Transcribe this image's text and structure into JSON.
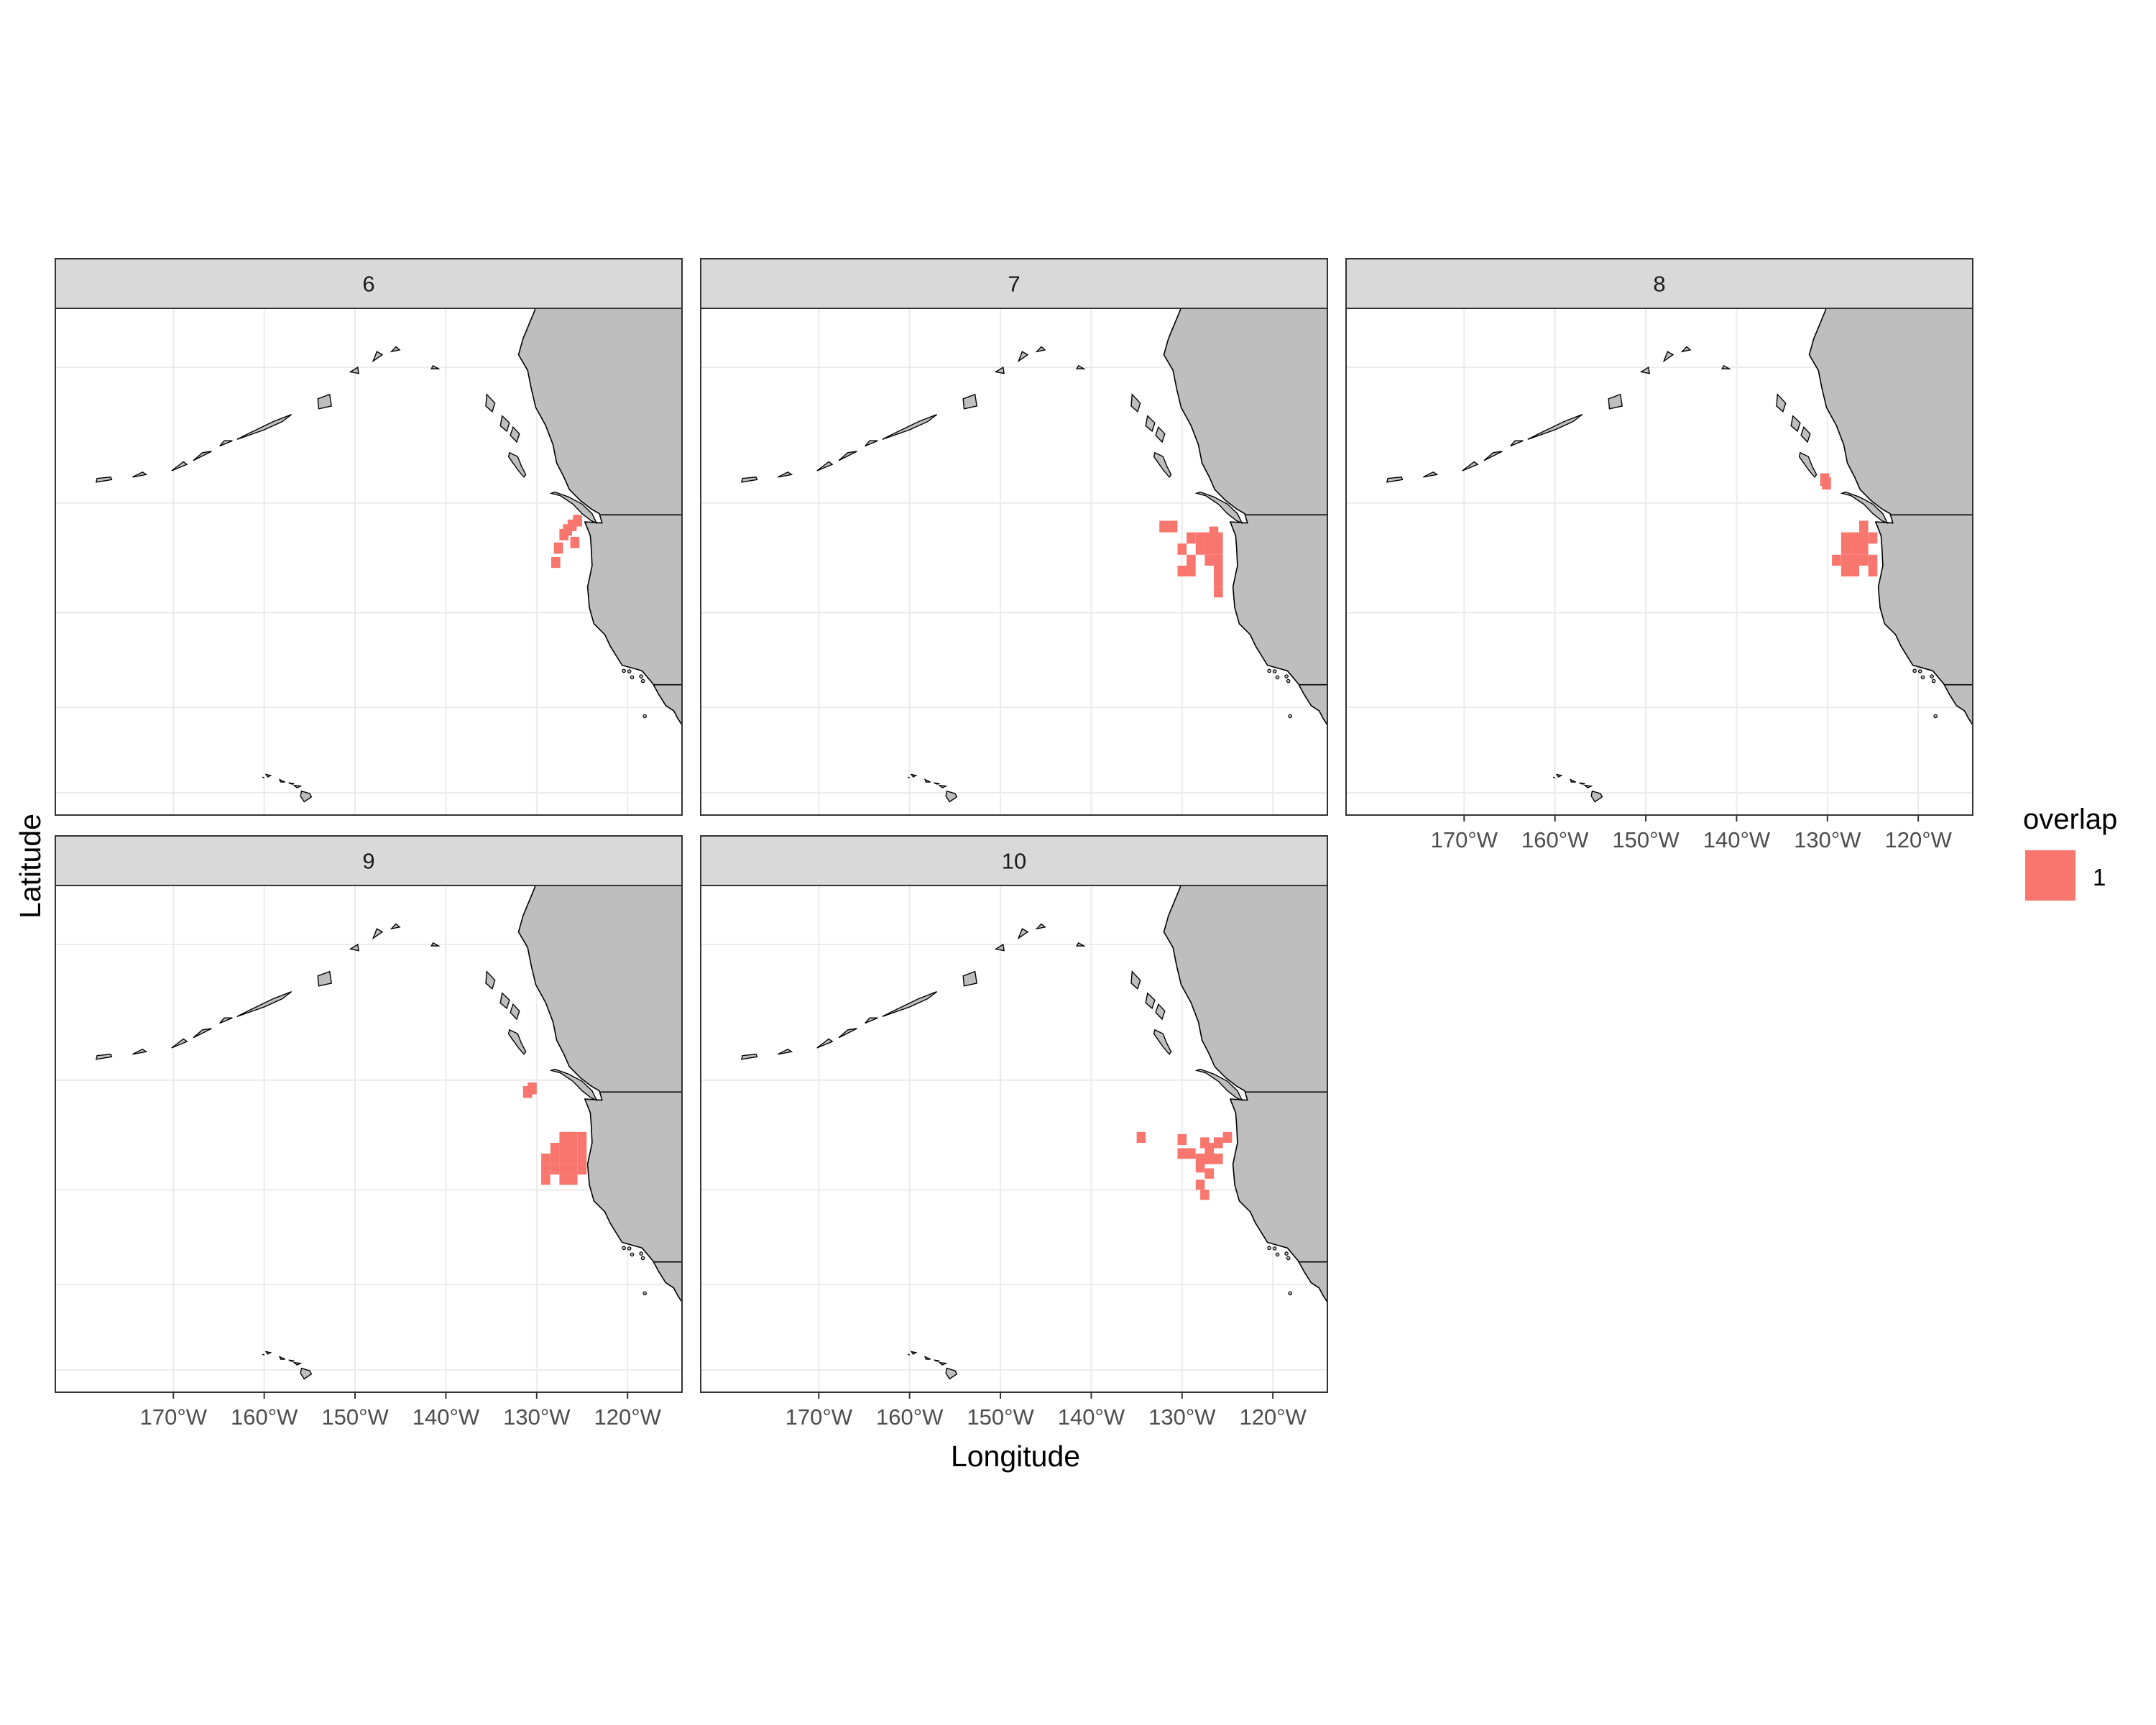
{
  "figure": {
    "x_axis_title": "Longitude",
    "y_axis_title": "Latitude",
    "legend_title": "overlap",
    "legend_key_label": "1"
  },
  "colors": {
    "overlap": "#f8766d",
    "land": "#bebebe",
    "coast": "#000000",
    "strip": "#d9d9d9",
    "grid": "#ebebeb",
    "tick_text": "#4d4d4d"
  },
  "chart_data": {
    "type": "map-facets",
    "facet_variable_values": [
      "6",
      "7",
      "8",
      "9",
      "10"
    ],
    "x_ticks": [
      {
        "lon": -170,
        "label": "170°W"
      },
      {
        "lon": -160,
        "label": "160°W"
      },
      {
        "lon": -150,
        "label": "150°W"
      },
      {
        "lon": -140,
        "label": "140°W"
      },
      {
        "lon": -130,
        "label": "130°W"
      },
      {
        "lon": -120,
        "label": "120°W"
      }
    ],
    "y_grid_lat": [
      20,
      30,
      40,
      50,
      60
    ],
    "xlim": [
      -183,
      -114
    ],
    "ylim": [
      17.9,
      65
    ],
    "grid": true,
    "legend_position": "right",
    "cells": {
      "6": [
        [
          -125.5,
          48.5
        ],
        [
          -126.1,
          48.1
        ],
        [
          -126.6,
          47.7
        ],
        [
          -127.0,
          47.3
        ],
        [
          -125.8,
          46.6
        ],
        [
          -127.6,
          46.1
        ],
        [
          -127.9,
          44.8
        ]
      ],
      "7": [
        [
          -132,
          48
        ],
        [
          -131,
          48
        ],
        [
          -126.5,
          47.5
        ],
        [
          -129,
          47
        ],
        [
          -128,
          47
        ],
        [
          -127,
          47
        ],
        [
          -126,
          47
        ],
        [
          -130,
          46
        ],
        [
          -128,
          46
        ],
        [
          -127,
          46
        ],
        [
          -126,
          46
        ],
        [
          -129,
          45
        ],
        [
          -127,
          45
        ],
        [
          -126,
          45
        ],
        [
          -130,
          44
        ],
        [
          -129,
          44
        ],
        [
          -126,
          44
        ],
        [
          -126,
          43
        ],
        [
          -126,
          42
        ]
      ],
      "8": [
        [
          -130.3,
          51.9
        ],
        [
          -130.1,
          51.6
        ],
        [
          -126,
          48
        ],
        [
          -128,
          47
        ],
        [
          -127,
          47
        ],
        [
          -126,
          47
        ],
        [
          -125,
          47
        ],
        [
          -128,
          46
        ],
        [
          -127,
          46
        ],
        [
          -126,
          46
        ],
        [
          -129,
          45
        ],
        [
          -128,
          45
        ],
        [
          -127,
          45
        ],
        [
          -126,
          45
        ],
        [
          -125,
          45
        ],
        [
          -128,
          44
        ],
        [
          -127,
          44
        ],
        [
          -125,
          44
        ]
      ],
      "9": [
        [
          -131,
          49
        ],
        [
          -130.5,
          49.3
        ],
        [
          -127,
          45
        ],
        [
          -126,
          45
        ],
        [
          -125,
          45
        ],
        [
          -128,
          44
        ],
        [
          -127,
          44
        ],
        [
          -126,
          44
        ],
        [
          -125,
          44
        ],
        [
          -129,
          43
        ],
        [
          -128,
          43
        ],
        [
          -127,
          43
        ],
        [
          -126,
          43
        ],
        [
          -125,
          43
        ],
        [
          -129,
          42
        ],
        [
          -128,
          42
        ],
        [
          -127,
          42
        ],
        [
          -126,
          42
        ],
        [
          -125,
          42
        ],
        [
          -129,
          41
        ],
        [
          -127,
          41
        ],
        [
          -126,
          41
        ]
      ],
      "10": [
        [
          -134.5,
          45
        ],
        [
          -125,
          45
        ],
        [
          -130,
          44.8
        ],
        [
          -127.5,
          44.5
        ],
        [
          -126,
          44.5
        ],
        [
          -127,
          44
        ],
        [
          -130,
          43.5
        ],
        [
          -129,
          43.5
        ],
        [
          -128,
          43
        ],
        [
          -127,
          43
        ],
        [
          -126,
          43
        ],
        [
          -128,
          42.2
        ],
        [
          -127,
          41.6
        ],
        [
          -128,
          40.5
        ],
        [
          -127.5,
          39.5
        ]
      ]
    }
  }
}
